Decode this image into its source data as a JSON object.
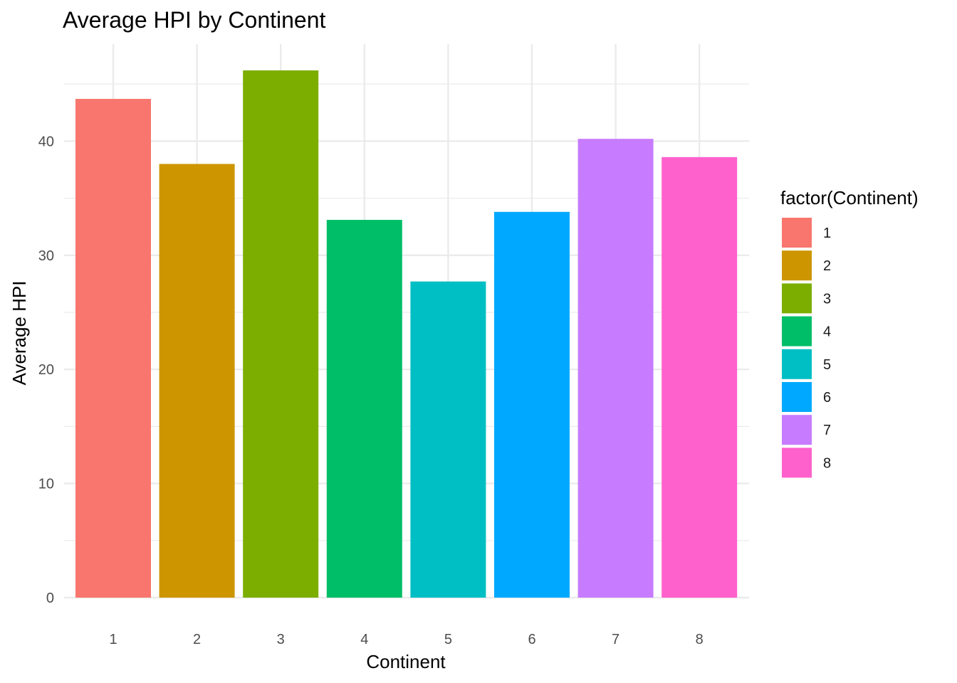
{
  "chart_data": {
    "type": "bar",
    "title": "Average HPI by Continent",
    "xlabel": "Continent",
    "ylabel": "Average HPI",
    "categories": [
      "1",
      "2",
      "3",
      "4",
      "5",
      "6",
      "7",
      "8"
    ],
    "values": [
      43.7,
      38.0,
      46.2,
      33.1,
      27.7,
      33.8,
      40.2,
      38.6
    ],
    "colors": [
      "#F8766D",
      "#CD9600",
      "#7CAE00",
      "#00BE67",
      "#00BFC4",
      "#00A9FF",
      "#C77CFF",
      "#FF61CC"
    ],
    "yticks": [
      0,
      10,
      20,
      30,
      40
    ],
    "ylim": [
      0,
      48.5
    ],
    "grid": true,
    "legend": {
      "title": "factor(Continent)",
      "placement": "right",
      "labels": [
        "1",
        "2",
        "3",
        "4",
        "5",
        "6",
        "7",
        "8"
      ]
    }
  }
}
